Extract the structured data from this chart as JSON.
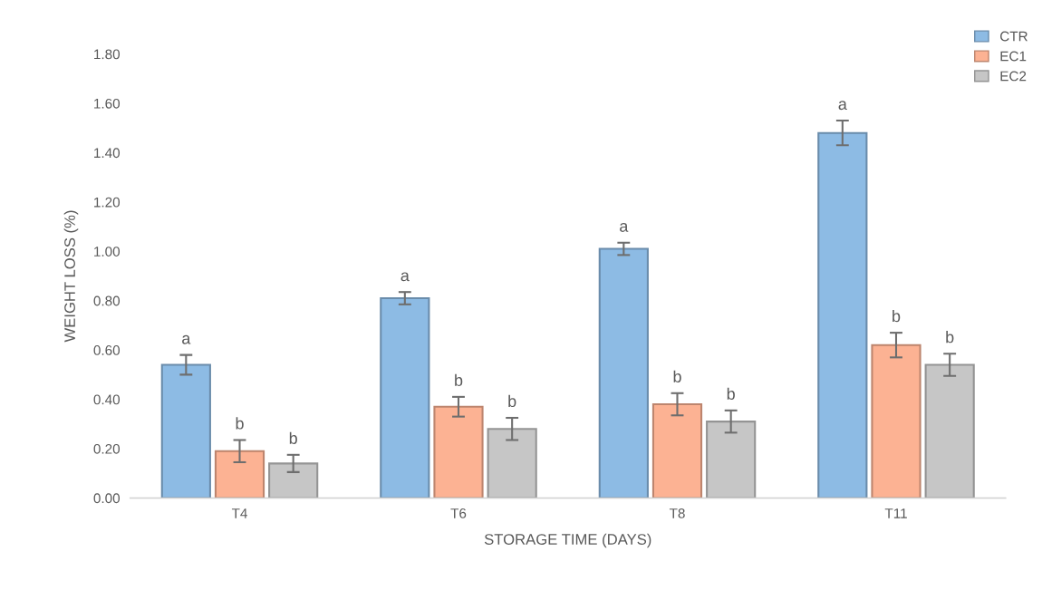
{
  "chart_data": {
    "type": "bar",
    "xlabel": "STORAGE TIME (DAYS)",
    "ylabel": "WEIGHT LOSS (%)",
    "categories": [
      "T4",
      "T6",
      "T8",
      "T11"
    ],
    "series": [
      {
        "name": "CTR",
        "color": "#8dbbe4",
        "values": [
          0.54,
          0.81,
          1.01,
          1.48
        ],
        "errors": [
          0.04,
          0.025,
          0.025,
          0.05
        ],
        "value_labels": [
          "a",
          "a",
          "a",
          "a"
        ]
      },
      {
        "name": "EC1",
        "color": "#fcb293",
        "values": [
          0.19,
          0.37,
          0.38,
          0.62
        ],
        "errors": [
          0.045,
          0.04,
          0.045,
          0.05
        ],
        "value_labels": [
          "b",
          "b",
          "b",
          "b"
        ]
      },
      {
        "name": "EC2",
        "color": "#c6c6c6",
        "values": [
          0.14,
          0.28,
          0.31,
          0.54
        ],
        "errors": [
          0.035,
          0.045,
          0.045,
          0.045
        ],
        "value_labels": [
          "b",
          "b",
          "b",
          "b"
        ]
      }
    ],
    "ylim": [
      0,
      1.8
    ],
    "yticks": [
      {
        "value": 0,
        "label": "0.00"
      },
      {
        "value": 0.2,
        "label": "0.20"
      },
      {
        "value": 0.4,
        "label": "0.40"
      },
      {
        "value": 0.6,
        "label": "0.60"
      },
      {
        "value": 0.8,
        "label": "0.80"
      },
      {
        "value": 1.0,
        "label": "1.00"
      },
      {
        "value": 1.2,
        "label": "1.20"
      },
      {
        "value": 1.4,
        "label": "1.40"
      },
      {
        "value": 1.6,
        "label": "1.60"
      },
      {
        "value": 1.8,
        "label": "1.80"
      }
    ],
    "grid": false,
    "legend": "top right"
  }
}
